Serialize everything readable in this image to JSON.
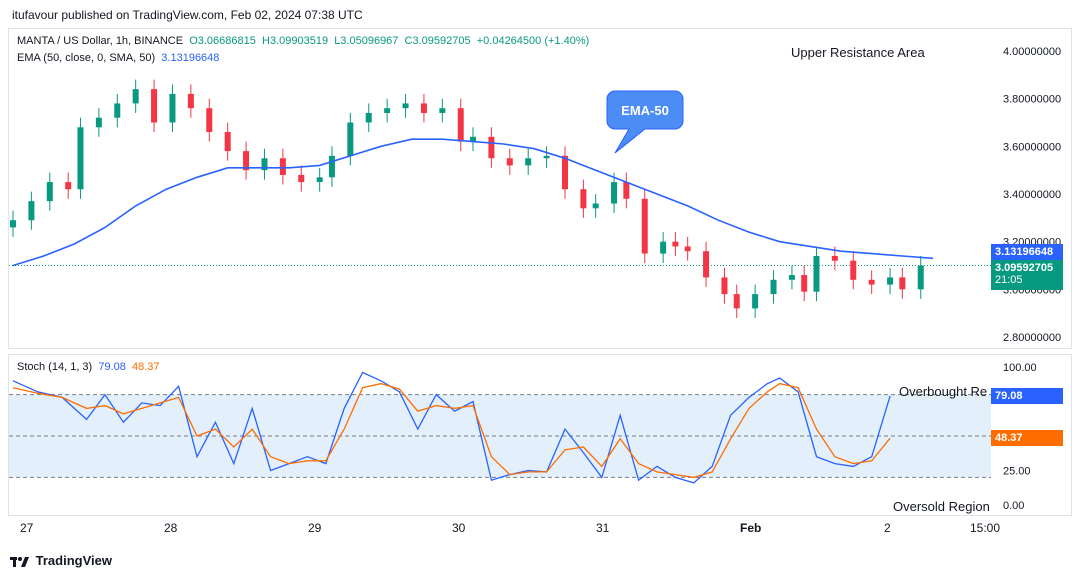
{
  "credit": "itufavour published on TradingView.com, Feb 02, 2024 07:38 UTC",
  "symbol_line": {
    "symbol": "MANTA / US Dollar, 1h, BINANCE",
    "open": "O3.06686815",
    "high": "H3.09903519",
    "low": "L3.05096967",
    "close": "C3.09592705",
    "change": "+0.04264500 (+1.40%)"
  },
  "ema_line": {
    "label": "EMA (50, close, 0, SMA, 50)",
    "value": "3.13196648"
  },
  "annotations": {
    "upper_resistance": "Upper Resistance Area",
    "ema_callout": "EMA-50",
    "overbought": "Overbought Re",
    "oversold": "Oversold Region"
  },
  "price_tags": {
    "ema": "3.13196648",
    "price": "3.09592705",
    "countdown": "21:05"
  },
  "stoch": {
    "label": "Stoch (14, 1, 3)",
    "k": "79.08",
    "d": "48.37"
  },
  "footer": "TradingView",
  "colors": {
    "up": "#089981",
    "down": "#f23645",
    "ema": "#2962ff",
    "stoch_k": "#2962ff",
    "stoch_d": "#ff6d00",
    "band": "#e3f0fb"
  },
  "chart_data": [
    {
      "type": "candlestick",
      "title": "MANTA / US Dollar, 1h, BINANCE",
      "x_ticks": [
        "27",
        "28",
        "29",
        "30",
        "31",
        "Feb",
        "2",
        "15:00"
      ],
      "y_ticks": [
        "4.00000000",
        "3.80000000",
        "3.60000000",
        "3.40000000",
        "3.20000000",
        "3.00000000",
        "2.80000000"
      ],
      "ylim": [
        2.8,
        4.0
      ],
      "series": [
        {
          "name": "EMA (50, close, 0, SMA, 50)",
          "points": [
            [
              0,
              3.1
            ],
            [
              10,
              3.14
            ],
            [
              20,
              3.19
            ],
            [
              30,
              3.26
            ],
            [
              40,
              3.35
            ],
            [
              50,
              3.42
            ],
            [
              60,
              3.47
            ],
            [
              70,
              3.51
            ],
            [
              80,
              3.51
            ],
            [
              90,
              3.51
            ],
            [
              100,
              3.52
            ],
            [
              110,
              3.56
            ],
            [
              120,
              3.6
            ],
            [
              130,
              3.63
            ],
            [
              140,
              3.63
            ],
            [
              150,
              3.62
            ],
            [
              160,
              3.61
            ],
            [
              170,
              3.59
            ],
            [
              180,
              3.55
            ],
            [
              190,
              3.5
            ],
            [
              200,
              3.45
            ],
            [
              210,
              3.4
            ],
            [
              220,
              3.35
            ],
            [
              230,
              3.29
            ],
            [
              240,
              3.24
            ],
            [
              250,
              3.2
            ],
            [
              260,
              3.18
            ],
            [
              270,
              3.16
            ],
            [
              280,
              3.15
            ],
            [
              290,
              3.14
            ],
            [
              300,
              3.13
            ]
          ]
        },
        {
          "name": "close",
          "points": [
            [
              0,
              3.29
            ],
            [
              6,
              3.37
            ],
            [
              12,
              3.45
            ],
            [
              18,
              3.42
            ],
            [
              22,
              3.68
            ],
            [
              28,
              3.72
            ],
            [
              34,
              3.78
            ],
            [
              40,
              3.84
            ],
            [
              46,
              3.7
            ],
            [
              52,
              3.82
            ],
            [
              58,
              3.76
            ],
            [
              64,
              3.66
            ],
            [
              70,
              3.58
            ],
            [
              76,
              3.5
            ],
            [
              82,
              3.55
            ],
            [
              88,
              3.48
            ],
            [
              94,
              3.45
            ],
            [
              100,
              3.47
            ],
            [
              104,
              3.56
            ],
            [
              110,
              3.7
            ],
            [
              116,
              3.74
            ],
            [
              122,
              3.76
            ],
            [
              128,
              3.78
            ],
            [
              134,
              3.74
            ],
            [
              140,
              3.76
            ],
            [
              146,
              3.62
            ],
            [
              150,
              3.64
            ],
            [
              156,
              3.55
            ],
            [
              162,
              3.52
            ],
            [
              168,
              3.55
            ],
            [
              174,
              3.56
            ],
            [
              180,
              3.42
            ],
            [
              186,
              3.34
            ],
            [
              190,
              3.36
            ],
            [
              196,
              3.45
            ],
            [
              200,
              3.38
            ],
            [
              206,
              3.15
            ],
            [
              212,
              3.2
            ],
            [
              216,
              3.18
            ],
            [
              220,
              3.16
            ],
            [
              226,
              3.05
            ],
            [
              232,
              2.98
            ],
            [
              236,
              2.92
            ],
            [
              242,
              2.98
            ],
            [
              248,
              3.04
            ],
            [
              254,
              3.06
            ],
            [
              258,
              2.99
            ],
            [
              262,
              3.14
            ],
            [
              268,
              3.12
            ],
            [
              274,
              3.04
            ],
            [
              280,
              3.02
            ],
            [
              286,
              3.05
            ],
            [
              290,
              3.0
            ],
            [
              296,
              3.1
            ]
          ]
        }
      ]
    },
    {
      "type": "line",
      "title": "Stoch (14, 1, 3)",
      "y_ticks": [
        "100.00",
        "25.00",
        "0.00"
      ],
      "ylim": [
        0,
        100
      ],
      "levels": [
        80,
        50,
        20
      ],
      "series": [
        {
          "name": "%K",
          "points": [
            [
              0,
              90
            ],
            [
              8,
              82
            ],
            [
              16,
              78
            ],
            [
              24,
              62
            ],
            [
              30,
              80
            ],
            [
              36,
              60
            ],
            [
              42,
              74
            ],
            [
              48,
              72
            ],
            [
              54,
              86
            ],
            [
              60,
              35
            ],
            [
              66,
              60
            ],
            [
              72,
              30
            ],
            [
              78,
              70
            ],
            [
              84,
              25
            ],
            [
              90,
              30
            ],
            [
              96,
              35
            ],
            [
              102,
              30
            ],
            [
              108,
              70
            ],
            [
              114,
              96
            ],
            [
              120,
              90
            ],
            [
              126,
              82
            ],
            [
              132,
              55
            ],
            [
              138,
              80
            ],
            [
              144,
              68
            ],
            [
              150,
              75
            ],
            [
              156,
              18
            ],
            [
              162,
              22
            ],
            [
              168,
              25
            ],
            [
              174,
              24
            ],
            [
              180,
              55
            ],
            [
              186,
              38
            ],
            [
              192,
              20
            ],
            [
              198,
              65
            ],
            [
              204,
              18
            ],
            [
              210,
              28
            ],
            [
              216,
              20
            ],
            [
              222,
              16
            ],
            [
              228,
              28
            ],
            [
              234,
              65
            ],
            [
              240,
              78
            ],
            [
              246,
              88
            ],
            [
              250,
              92
            ],
            [
              256,
              82
            ],
            [
              262,
              35
            ],
            [
              268,
              30
            ],
            [
              274,
              28
            ],
            [
              280,
              35
            ],
            [
              286,
              79.08
            ]
          ]
        },
        {
          "name": "%D",
          "points": [
            [
              0,
              85
            ],
            [
              8,
              81
            ],
            [
              16,
              78
            ],
            [
              24,
              70
            ],
            [
              30,
              72
            ],
            [
              36,
              66
            ],
            [
              42,
              70
            ],
            [
              48,
              74
            ],
            [
              54,
              78
            ],
            [
              60,
              50
            ],
            [
              66,
              55
            ],
            [
              72,
              42
            ],
            [
              78,
              55
            ],
            [
              84,
              35
            ],
            [
              90,
              30
            ],
            [
              96,
              32
            ],
            [
              102,
              32
            ],
            [
              108,
              55
            ],
            [
              114,
              85
            ],
            [
              120,
              88
            ],
            [
              126,
              84
            ],
            [
              132,
              68
            ],
            [
              138,
              72
            ],
            [
              144,
              70
            ],
            [
              150,
              72
            ],
            [
              156,
              35
            ],
            [
              162,
              22
            ],
            [
              168,
              24
            ],
            [
              174,
              24
            ],
            [
              180,
              40
            ],
            [
              186,
              42
            ],
            [
              192,
              28
            ],
            [
              198,
              48
            ],
            [
              204,
              30
            ],
            [
              210,
              24
            ],
            [
              216,
              22
            ],
            [
              222,
              20
            ],
            [
              228,
              24
            ],
            [
              234,
              48
            ],
            [
              240,
              70
            ],
            [
              246,
              82
            ],
            [
              250,
              88
            ],
            [
              256,
              85
            ],
            [
              262,
              55
            ],
            [
              268,
              35
            ],
            [
              274,
              30
            ],
            [
              280,
              32
            ],
            [
              286,
              48.37
            ]
          ]
        }
      ]
    }
  ]
}
